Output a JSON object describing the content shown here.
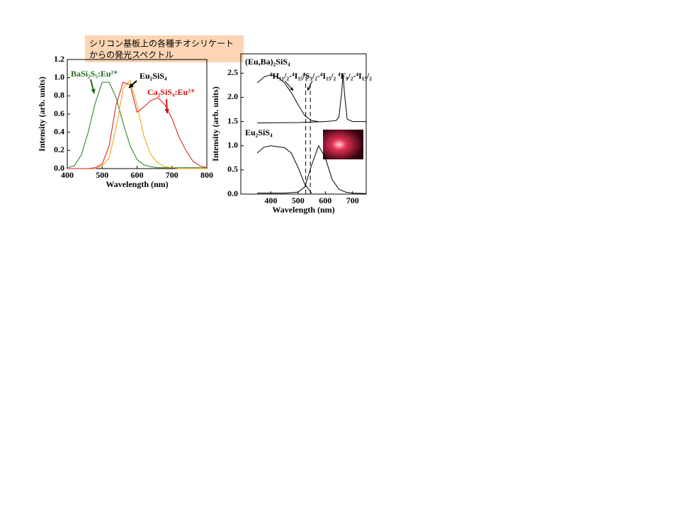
{
  "title": [
    "シリコン基板上の各種チオシリケート",
    "からの発光スペクトル"
  ],
  "chart_data": [
    {
      "type": "line",
      "x_label": "Wavelength (nm)",
      "y_label": "Intensity (arb. units)",
      "xlim": [
        400,
        800
      ],
      "xticks": [
        400,
        500,
        600,
        700,
        800
      ],
      "ylim": [
        0,
        1.2
      ],
      "yticks": [
        {
          "value": 0,
          "label": "0.0"
        },
        {
          "value": 0.2,
          "label": "0.2"
        },
        {
          "value": 0.4,
          "label": "0.4"
        },
        {
          "value": 0.6,
          "label": "0.6"
        },
        {
          "value": 0.8,
          "label": "0.8"
        },
        {
          "value": 1,
          "label": "1.0"
        },
        {
          "value": 1.2,
          "label": "1.2"
        }
      ],
      "annotations": [
        {
          "text": "BaSi₂S₅:Eu²⁺",
          "color": "#1e6b1e"
        },
        {
          "text": "Eu₂SiS₄",
          "color": "#000000"
        },
        {
          "text": "Ca₂SiS₄:Eu²⁺",
          "color": "#d01010"
        }
      ],
      "series": [
        {
          "color": "#1e7a1e",
          "x": [
            400,
            420,
            440,
            460,
            480,
            500,
            520,
            540,
            560,
            580,
            600,
            620,
            640,
            660,
            680,
            700,
            720,
            740,
            760,
            780,
            800
          ],
          "values": [
            0.01,
            0.03,
            0.15,
            0.4,
            0.72,
            0.95,
            0.95,
            0.78,
            0.5,
            0.25,
            0.1,
            0.04,
            0.02,
            0.01,
            0.01,
            0.01,
            0.01,
            0.01,
            0.01,
            0.01,
            0.01
          ]
        },
        {
          "color": "#f0a000",
          "x": [
            400,
            420,
            440,
            460,
            480,
            500,
            520,
            540,
            560,
            580,
            600,
            620,
            640,
            660,
            680,
            700,
            720,
            740,
            760,
            780,
            800
          ],
          "values": [
            0,
            0,
            0,
            0,
            0,
            0.03,
            0.12,
            0.45,
            0.88,
            0.97,
            0.7,
            0.35,
            0.15,
            0.06,
            0.02,
            0.01,
            0,
            0,
            0,
            0,
            0
          ]
        },
        {
          "color": "#e01010",
          "x": [
            400,
            420,
            440,
            460,
            480,
            500,
            520,
            540,
            560,
            580,
            600,
            620,
            640,
            660,
            680,
            700,
            720,
            740,
            760,
            780,
            800
          ],
          "values": [
            0,
            0,
            0,
            0,
            0.01,
            0.05,
            0.25,
            0.7,
            0.95,
            0.92,
            0.62,
            0.68,
            0.75,
            0.78,
            0.7,
            0.55,
            0.35,
            0.2,
            0.08,
            0.03,
            0.01
          ]
        }
      ]
    },
    {
      "type": "line",
      "x_label": "Wavelength (nm)",
      "y_label": "Intensity (arb. units)",
      "xlim": [
        290,
        750
      ],
      "xticks": [
        400,
        500,
        600,
        700
      ],
      "ylim": [
        0,
        2.9
      ],
      "yticks": [
        {
          "value": 0,
          "label": "0.0"
        },
        {
          "value": 0.5,
          "label": "0.5"
        },
        {
          "value": 1,
          "label": "1.0"
        },
        {
          "value": 1.5,
          "label": "1.5"
        },
        {
          "value": 2,
          "label": "2.0"
        },
        {
          "value": 2.5,
          "label": "2.5"
        }
      ],
      "vlines": [
        528,
        545
      ],
      "annotations": [
        {
          "text": "(Eu,Ba)₂SiS₄",
          "color": "#000000"
        },
        {
          "text": "Eu₂SiS₄",
          "color": "#000000"
        },
        {
          "text": "²H₁₁/₂-⁴I₁₅/₂",
          "color": "#000000"
        },
        {
          "text": "⁴S₃/₂-⁴I₁₅/₂",
          "color": "#000000"
        },
        {
          "text": "⁴F₉/₂-⁴I₁₅/₂",
          "color": "#000000"
        }
      ],
      "series": [
        {
          "color": "#000000",
          "x": [
            350,
            375,
            400,
            425,
            450,
            475,
            500,
            525,
            550,
            575
          ],
          "values": [
            2.3,
            2.42,
            2.47,
            2.42,
            2.3,
            2.1,
            1.85,
            1.62,
            1.52,
            1.5
          ]
        },
        {
          "color": "#000000",
          "x": [
            350,
            500,
            600,
            640,
            650,
            660,
            665,
            670,
            680,
            700,
            750
          ],
          "values": [
            1.47,
            1.48,
            1.5,
            1.52,
            1.6,
            2.1,
            2.48,
            2.1,
            1.55,
            1.5,
            1.5
          ]
        },
        {
          "color": "#000000",
          "x": [
            350,
            375,
            400,
            425,
            450,
            475,
            500,
            525,
            550
          ],
          "values": [
            0.85,
            0.97,
            1,
            0.98,
            0.96,
            0.85,
            0.55,
            0.2,
            0.02
          ]
        },
        {
          "color": "#000000",
          "x": [
            350,
            450,
            500,
            525,
            550,
            575,
            600,
            625,
            650,
            675,
            700,
            750
          ],
          "values": [
            0.02,
            0.02,
            0.04,
            0.15,
            0.6,
            1,
            0.75,
            0.3,
            0.1,
            0.04,
            0.02,
            0.01
          ]
        }
      ]
    }
  ]
}
